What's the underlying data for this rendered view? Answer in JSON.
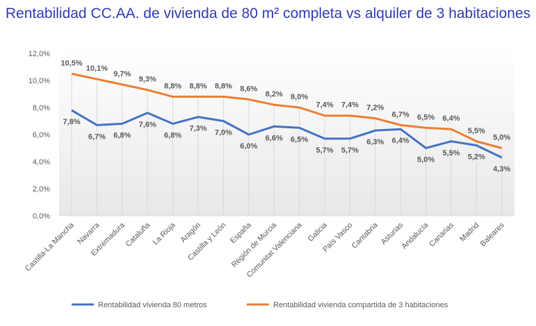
{
  "chart_data": {
    "type": "line",
    "title": "Rentabilidad CC.AA. de vivienda de 80 m² completa vs alquiler de 3 habitaciones",
    "xlabel": "",
    "ylabel": "",
    "ylim": [
      0,
      12
    ],
    "yticks": [
      "0,0%",
      "2,0%",
      "4,0%",
      "6,0%",
      "8,0%",
      "10,0%",
      "12,0%"
    ],
    "grid": "vertical drop lines",
    "legend": "bottom",
    "categories": [
      "Castilla-La Mancha",
      "Navarra",
      "Extremadura",
      "Cataluña",
      "La Rioja",
      "Aragón",
      "Castilla y León",
      "España",
      "Región de Murcia",
      "Comunitat Valenciana",
      "Galicia",
      "País Vasco",
      "Cantabria",
      "Asturias",
      "Andalucía",
      "Canarias",
      "Madrid",
      "Baleares"
    ],
    "series": [
      {
        "name": "Rentabilidad vivienda 80 metros",
        "color": "#4472c4",
        "values": [
          7.8,
          6.7,
          6.8,
          7.6,
          6.8,
          7.3,
          7.0,
          6.0,
          6.6,
          6.5,
          5.7,
          5.7,
          6.3,
          6.4,
          5.0,
          5.5,
          5.2,
          4.3
        ]
      },
      {
        "name": "Rentabilidad vivienda compartida de 3 habitaciones",
        "color": "#ed7d31",
        "values": [
          10.5,
          10.1,
          9.7,
          9.3,
          8.8,
          8.8,
          8.8,
          8.6,
          8.2,
          8.0,
          7.4,
          7.4,
          7.2,
          6.7,
          6.5,
          6.4,
          5.5,
          5.0
        ]
      }
    ]
  }
}
